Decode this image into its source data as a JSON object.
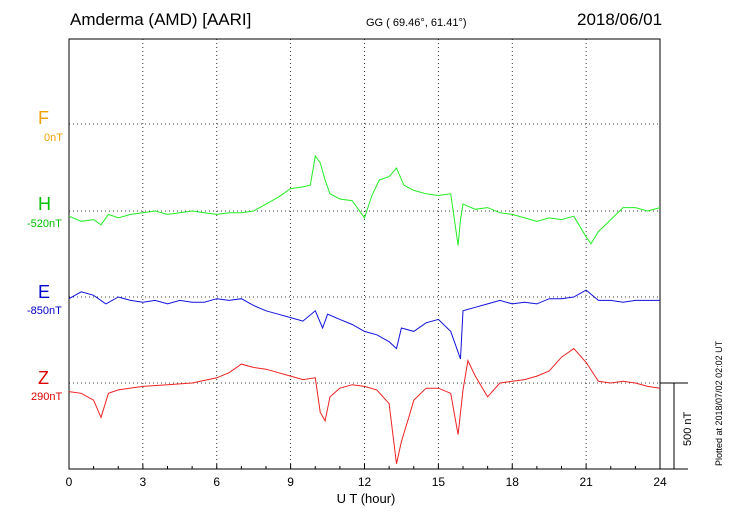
{
  "header": {
    "station": "Amderma (AMD)  [AARI]",
    "coords": "GG ( 69.46°,  61.41°)",
    "date": "2018/06/01"
  },
  "plotted_note": "Plotted at 2018/07/02 02:02 UT",
  "components": [
    {
      "letter": "F",
      "baseline": "0nT",
      "color": "#f0a000"
    },
    {
      "letter": "H",
      "baseline": "-520nT",
      "color": "#00c000"
    },
    {
      "letter": "E",
      "baseline": "-850nT",
      "color": "#0000cc"
    },
    {
      "letter": "Z",
      "baseline": "290nT",
      "color": "#dd0000"
    }
  ],
  "scale_label": "500 nT",
  "chart_data": {
    "type": "line",
    "xlabel": "U T (hour)",
    "x_ticks": [
      "0",
      "3",
      "6",
      "9",
      "12",
      "15",
      "18",
      "21",
      "24"
    ],
    "xlim": [
      0,
      24
    ],
    "y_unit_note": "values are offsets in nT from each component's baseline",
    "grid": true,
    "series": [
      {
        "name": "H",
        "color": "#22ee22",
        "x": [
          0,
          0.5,
          1,
          1.3,
          1.6,
          2,
          2.5,
          3,
          3.5,
          4,
          4.5,
          5,
          5.5,
          6,
          6.5,
          7,
          7.5,
          8,
          8.5,
          9,
          9.5,
          9.8,
          10,
          10.2,
          10.4,
          10.6,
          11,
          11.5,
          12,
          12.3,
          12.6,
          13,
          13.3,
          13.6,
          14,
          14.5,
          15,
          15.5,
          15.8,
          15.9,
          16,
          16.5,
          17,
          17.5,
          18,
          18.5,
          19,
          19.5,
          20,
          20.5,
          21,
          21.2,
          21.5,
          22,
          22.5,
          23,
          23.5,
          24
        ],
        "y": [
          -30,
          -60,
          -50,
          -80,
          -20,
          -40,
          -20,
          -10,
          0,
          -20,
          -10,
          0,
          -10,
          -20,
          -10,
          -10,
          0,
          40,
          80,
          130,
          140,
          150,
          320,
          280,
          180,
          100,
          70,
          60,
          -40,
          90,
          180,
          200,
          250,
          150,
          120,
          100,
          90,
          100,
          -200,
          -50,
          40,
          10,
          20,
          -10,
          -20,
          -40,
          -60,
          -40,
          -50,
          -30,
          -150,
          -190,
          -120,
          -50,
          20,
          20,
          0,
          20
        ]
      },
      {
        "name": "E",
        "color": "#1111dd",
        "x": [
          0,
          0.5,
          1,
          1.5,
          2,
          2.5,
          3,
          3.5,
          4,
          4.5,
          5,
          5.5,
          6,
          6.5,
          7,
          7.5,
          8,
          8.5,
          9,
          9.5,
          10,
          10.3,
          10.5,
          11,
          11.5,
          12,
          12.5,
          13,
          13.3,
          13.5,
          14,
          14.5,
          15,
          15.5,
          15.9,
          16,
          16.5,
          17,
          17.5,
          18,
          18.5,
          19,
          19.5,
          20,
          20.5,
          21,
          21.5,
          22,
          22.5,
          23,
          23.5,
          24
        ],
        "y": [
          -10,
          30,
          10,
          -40,
          0,
          -20,
          -30,
          -20,
          -40,
          -20,
          -30,
          -30,
          -10,
          -20,
          -10,
          -50,
          -80,
          -100,
          -120,
          -140,
          -80,
          -180,
          -100,
          -130,
          -160,
          -200,
          -220,
          -260,
          -300,
          -180,
          -200,
          -150,
          -130,
          -200,
          -360,
          -80,
          -60,
          -40,
          -20,
          -40,
          -30,
          -40,
          -10,
          -10,
          0,
          40,
          -20,
          -20,
          -30,
          -20,
          -20,
          -20
        ]
      },
      {
        "name": "Z",
        "color": "#ee2222",
        "x": [
          0,
          0.5,
          1,
          1.3,
          1.6,
          2,
          3,
          4,
          5,
          6,
          6.5,
          7,
          7.5,
          8,
          8.5,
          9,
          9.5,
          10,
          10.2,
          10.4,
          10.6,
          11,
          11.5,
          12,
          12.5,
          13,
          13.3,
          13.5,
          13.8,
          14,
          14.5,
          15,
          15.5,
          15.8,
          16,
          16.2,
          16.5,
          17,
          17.5,
          18,
          18.5,
          19,
          19.5,
          20,
          20.5,
          21,
          21.5,
          22,
          22.5,
          23,
          23.5,
          24
        ],
        "y": [
          -50,
          -60,
          -100,
          -200,
          -60,
          -40,
          -20,
          -10,
          0,
          30,
          60,
          110,
          90,
          80,
          60,
          40,
          20,
          30,
          -170,
          -220,
          -80,
          -30,
          -10,
          -20,
          -40,
          -120,
          -470,
          -340,
          -200,
          -100,
          -30,
          -30,
          -60,
          -300,
          -40,
          130,
          40,
          -80,
          0,
          10,
          20,
          40,
          70,
          150,
          200,
          120,
          10,
          0,
          10,
          0,
          -20,
          -30
        ]
      }
    ]
  }
}
